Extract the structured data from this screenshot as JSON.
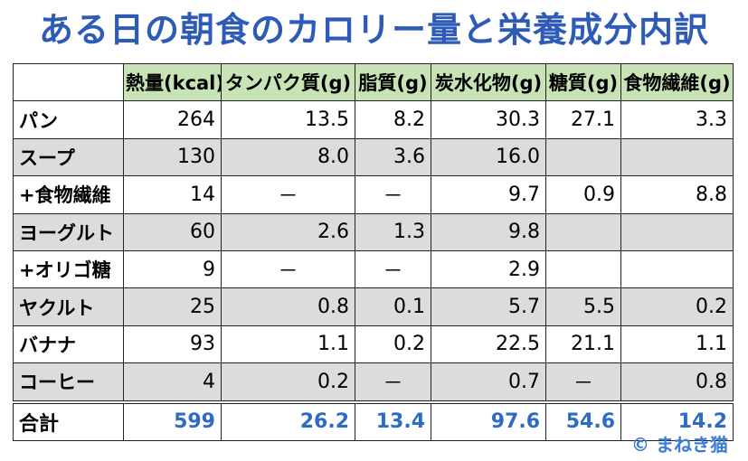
{
  "title": "ある日の朝食のカロリー量と栄養成分内訳",
  "table": {
    "headers": [
      "熱量(kcal)",
      "タンパク質(g)",
      "脂質(g)",
      "炭水化物(g)",
      "糖質(g)",
      "食物繊維(g)"
    ],
    "rows": [
      {
        "food": "パン",
        "values": [
          "264",
          "13.5",
          "8.2",
          "30.3",
          "27.1",
          "3.3"
        ]
      },
      {
        "food": "スープ",
        "values": [
          "130",
          "8.0",
          "3.6",
          "16.0",
          "",
          ""
        ]
      },
      {
        "food": "+食物繊維",
        "values": [
          "14",
          "－",
          "－",
          "9.7",
          "0.9",
          "8.8"
        ]
      },
      {
        "food": "ヨーグルト",
        "values": [
          "60",
          "2.6",
          "1.3",
          "9.8",
          "",
          ""
        ]
      },
      {
        "food": "+オリゴ糖",
        "values": [
          "9",
          "－",
          "－",
          "2.9",
          "",
          ""
        ]
      },
      {
        "food": "ヤクルト",
        "values": [
          "25",
          "0.8",
          "0.1",
          "5.7",
          "5.5",
          "0.2"
        ]
      },
      {
        "food": "バナナ",
        "values": [
          "93",
          "1.1",
          "0.2",
          "22.5",
          "21.1",
          "1.1"
        ]
      },
      {
        "food": "コーヒー",
        "values": [
          "4",
          "0.2",
          "－",
          "0.7",
          "－",
          "0.8"
        ]
      }
    ],
    "total": {
      "food": "合計",
      "values": [
        "599",
        "26.2",
        "13.4",
        "97.6",
        "54.6",
        "14.2"
      ]
    }
  },
  "credit": "© まねき猫",
  "colors": {
    "title": "#2E5BB8",
    "header_bg": "#C8E3B5",
    "alt_row_bg": "#DCDCDC",
    "total_text": "#2E6BC6"
  }
}
